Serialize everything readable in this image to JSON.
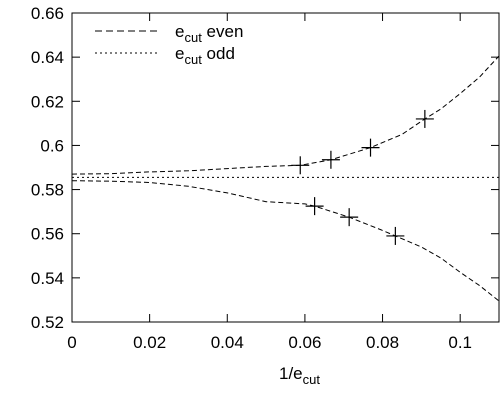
{
  "chart_data": {
    "type": "scatter",
    "title": "",
    "xlabel_main": "1/e",
    "xlabel_sub": "cut",
    "ylabel": "",
    "xlim": [
      0,
      0.11
    ],
    "ylim": [
      0.52,
      0.66
    ],
    "x_ticks": [
      0,
      0.02,
      0.04,
      0.06,
      0.08,
      0.1
    ],
    "x_tick_labels": [
      "0",
      "0.02",
      "0.04",
      "0.06",
      "0.08",
      "0.1"
    ],
    "y_ticks": [
      0.52,
      0.54,
      0.56,
      0.58,
      0.6,
      0.62,
      0.64,
      0.66
    ],
    "y_tick_labels": [
      "0.52",
      "0.54",
      "0.56",
      "0.58",
      "0.6",
      "0.62",
      "0.64",
      "0.66"
    ],
    "grid": false,
    "legend_position": "top-left",
    "series": [
      {
        "name_main": "e",
        "name_sub": "cut",
        "name_suffix": " even",
        "line_style": "dashed",
        "points": [
          {
            "x": 0.0625,
            "y": 0.5725
          },
          {
            "x": 0.0714,
            "y": 0.5675
          },
          {
            "x": 0.0833,
            "y": 0.559
          }
        ],
        "fit_curve": [
          [
            0.0,
            0.584
          ],
          [
            0.01,
            0.5838
          ],
          [
            0.02,
            0.5832
          ],
          [
            0.03,
            0.5815
          ],
          [
            0.04,
            0.5785
          ],
          [
            0.05,
            0.5745
          ],
          [
            0.06,
            0.5735
          ],
          [
            0.0625,
            0.5725
          ],
          [
            0.0714,
            0.5675
          ],
          [
            0.08,
            0.5615
          ],
          [
            0.0833,
            0.559
          ],
          [
            0.09,
            0.554
          ],
          [
            0.095,
            0.549
          ],
          [
            0.1,
            0.5425
          ],
          [
            0.105,
            0.5365
          ],
          [
            0.11,
            0.5295
          ]
        ]
      },
      {
        "name_main": "e",
        "name_sub": "cut",
        "name_suffix": " odd",
        "line_style": "dotted",
        "points": [
          {
            "x": 0.0588,
            "y": 0.591
          },
          {
            "x": 0.0667,
            "y": 0.5935
          },
          {
            "x": 0.0769,
            "y": 0.599
          },
          {
            "x": 0.0909,
            "y": 0.612
          }
        ],
        "fit_curve": [
          [
            0.0,
            0.587
          ],
          [
            0.01,
            0.5872
          ],
          [
            0.02,
            0.588
          ],
          [
            0.03,
            0.5885
          ],
          [
            0.04,
            0.5895
          ],
          [
            0.05,
            0.5905
          ],
          [
            0.0588,
            0.591
          ],
          [
            0.0667,
            0.5935
          ],
          [
            0.0769,
            0.599
          ],
          [
            0.085,
            0.605
          ],
          [
            0.0909,
            0.612
          ],
          [
            0.095,
            0.6165
          ],
          [
            0.1,
            0.6235
          ],
          [
            0.105,
            0.631
          ],
          [
            0.11,
            0.6405
          ]
        ]
      }
    ],
    "reference_lines": [
      {
        "type": "horizontal",
        "y": 0.5855,
        "line_style": "dotted"
      }
    ]
  }
}
